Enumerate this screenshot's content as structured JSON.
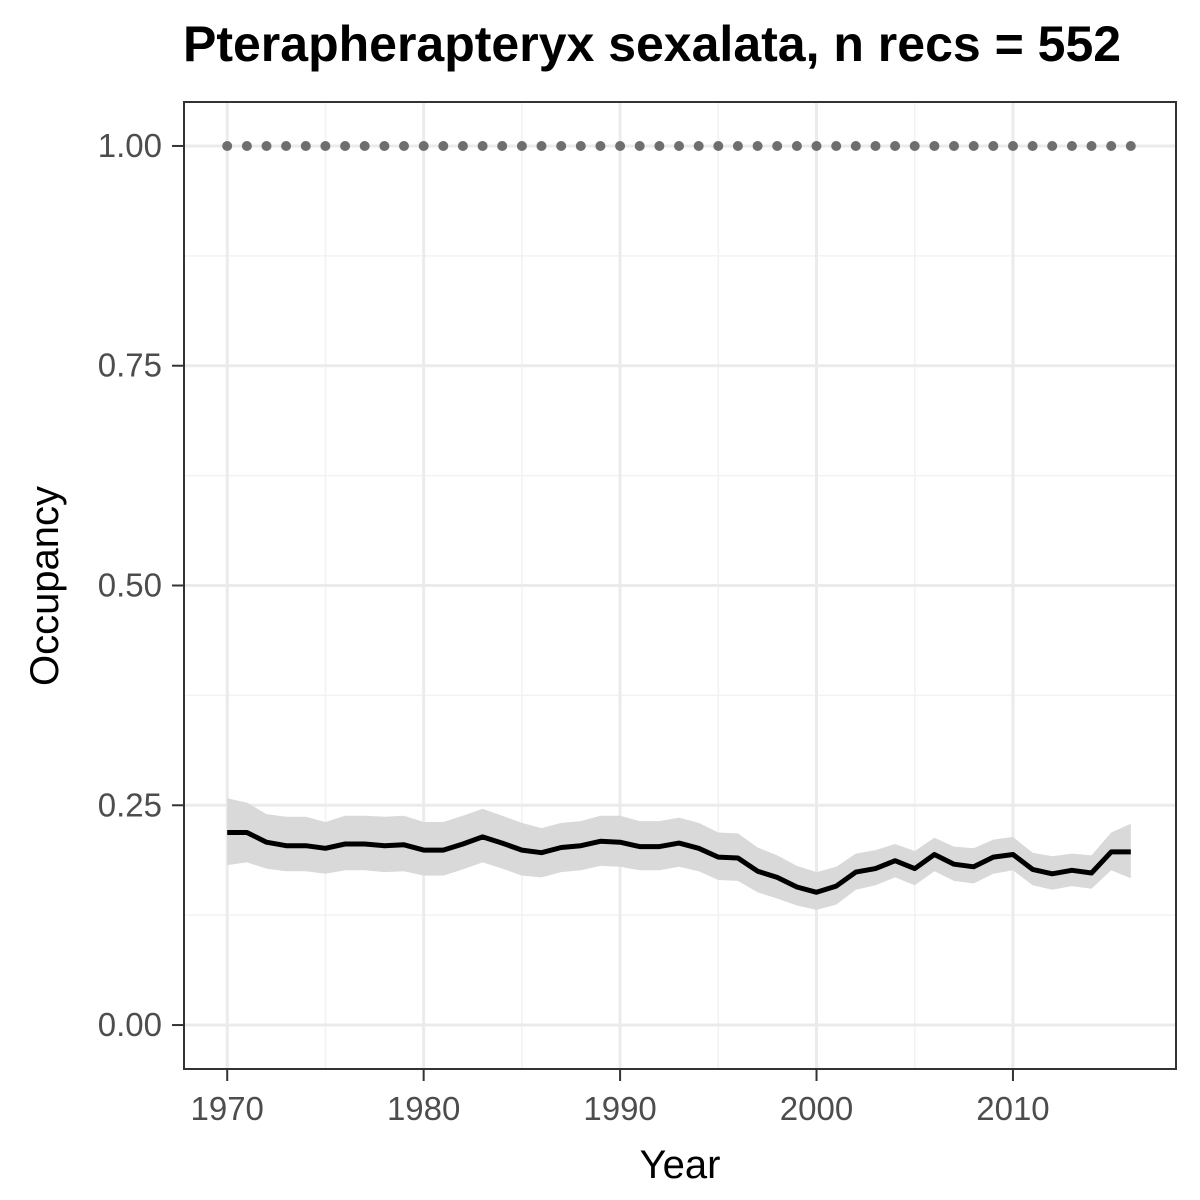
{
  "chart_data": {
    "type": "line",
    "title": "Pterapherapteryx sexalata, n recs = 552",
    "xlabel": "Year",
    "ylabel": "Occupancy",
    "xlim": [
      1967.8,
      2018.3
    ],
    "ylim": [
      -0.05,
      1.05
    ],
    "x_ticks": [
      1970,
      1980,
      1990,
      2000,
      2010
    ],
    "y_ticks": [
      "0.00",
      "0.25",
      "0.50",
      "0.75",
      "1.00"
    ],
    "grid": true,
    "legend": "none",
    "x": [
      1970,
      1971,
      1972,
      1973,
      1974,
      1975,
      1976,
      1977,
      1978,
      1979,
      1980,
      1981,
      1982,
      1983,
      1984,
      1985,
      1986,
      1987,
      1988,
      1989,
      1990,
      1991,
      1992,
      1993,
      1994,
      1995,
      1996,
      1997,
      1998,
      1999,
      2000,
      2001,
      2002,
      2003,
      2004,
      2005,
      2006,
      2007,
      2008,
      2009,
      2010,
      2011,
      2012,
      2013,
      2014,
      2015,
      2016
    ],
    "series": [
      {
        "kind": "line",
        "color": "#000000",
        "values": [
          0.219,
          0.219,
          0.208,
          0.204,
          0.204,
          0.201,
          0.206,
          0.206,
          0.204,
          0.205,
          0.199,
          0.199,
          0.206,
          0.214,
          0.207,
          0.199,
          0.196,
          0.202,
          0.204,
          0.209,
          0.208,
          0.203,
          0.203,
          0.207,
          0.201,
          0.191,
          0.19,
          0.175,
          0.168,
          0.157,
          0.151,
          0.158,
          0.174,
          0.178,
          0.187,
          0.178,
          0.194,
          0.183,
          0.18,
          0.191,
          0.194,
          0.177,
          0.172,
          0.176,
          0.173,
          0.197,
          0.197
        ]
      },
      {
        "kind": "ribbon",
        "color": "#d9d9d9",
        "upper": [
          0.258,
          0.253,
          0.24,
          0.237,
          0.237,
          0.231,
          0.238,
          0.238,
          0.237,
          0.238,
          0.231,
          0.231,
          0.238,
          0.246,
          0.238,
          0.23,
          0.224,
          0.23,
          0.232,
          0.238,
          0.238,
          0.232,
          0.232,
          0.236,
          0.23,
          0.219,
          0.218,
          0.202,
          0.193,
          0.181,
          0.174,
          0.18,
          0.195,
          0.199,
          0.206,
          0.198,
          0.213,
          0.203,
          0.201,
          0.211,
          0.214,
          0.196,
          0.192,
          0.195,
          0.193,
          0.219,
          0.229
        ],
        "lower": [
          0.182,
          0.185,
          0.178,
          0.175,
          0.175,
          0.172,
          0.176,
          0.176,
          0.174,
          0.175,
          0.17,
          0.17,
          0.177,
          0.185,
          0.178,
          0.17,
          0.168,
          0.174,
          0.176,
          0.181,
          0.18,
          0.176,
          0.176,
          0.18,
          0.175,
          0.165,
          0.164,
          0.151,
          0.144,
          0.136,
          0.131,
          0.137,
          0.154,
          0.159,
          0.168,
          0.159,
          0.175,
          0.164,
          0.161,
          0.172,
          0.176,
          0.159,
          0.154,
          0.158,
          0.155,
          0.176,
          0.167
        ]
      },
      {
        "kind": "points",
        "color": "#6e6e6e",
        "values": [
          1,
          1,
          1,
          1,
          1,
          1,
          1,
          1,
          1,
          1,
          1,
          1,
          1,
          1,
          1,
          1,
          1,
          1,
          1,
          1,
          1,
          1,
          1,
          1,
          1,
          1,
          1,
          1,
          1,
          1,
          1,
          1,
          1,
          1,
          1,
          1,
          1,
          1,
          1,
          1,
          1,
          1,
          1,
          1,
          1,
          1,
          1
        ]
      }
    ]
  }
}
